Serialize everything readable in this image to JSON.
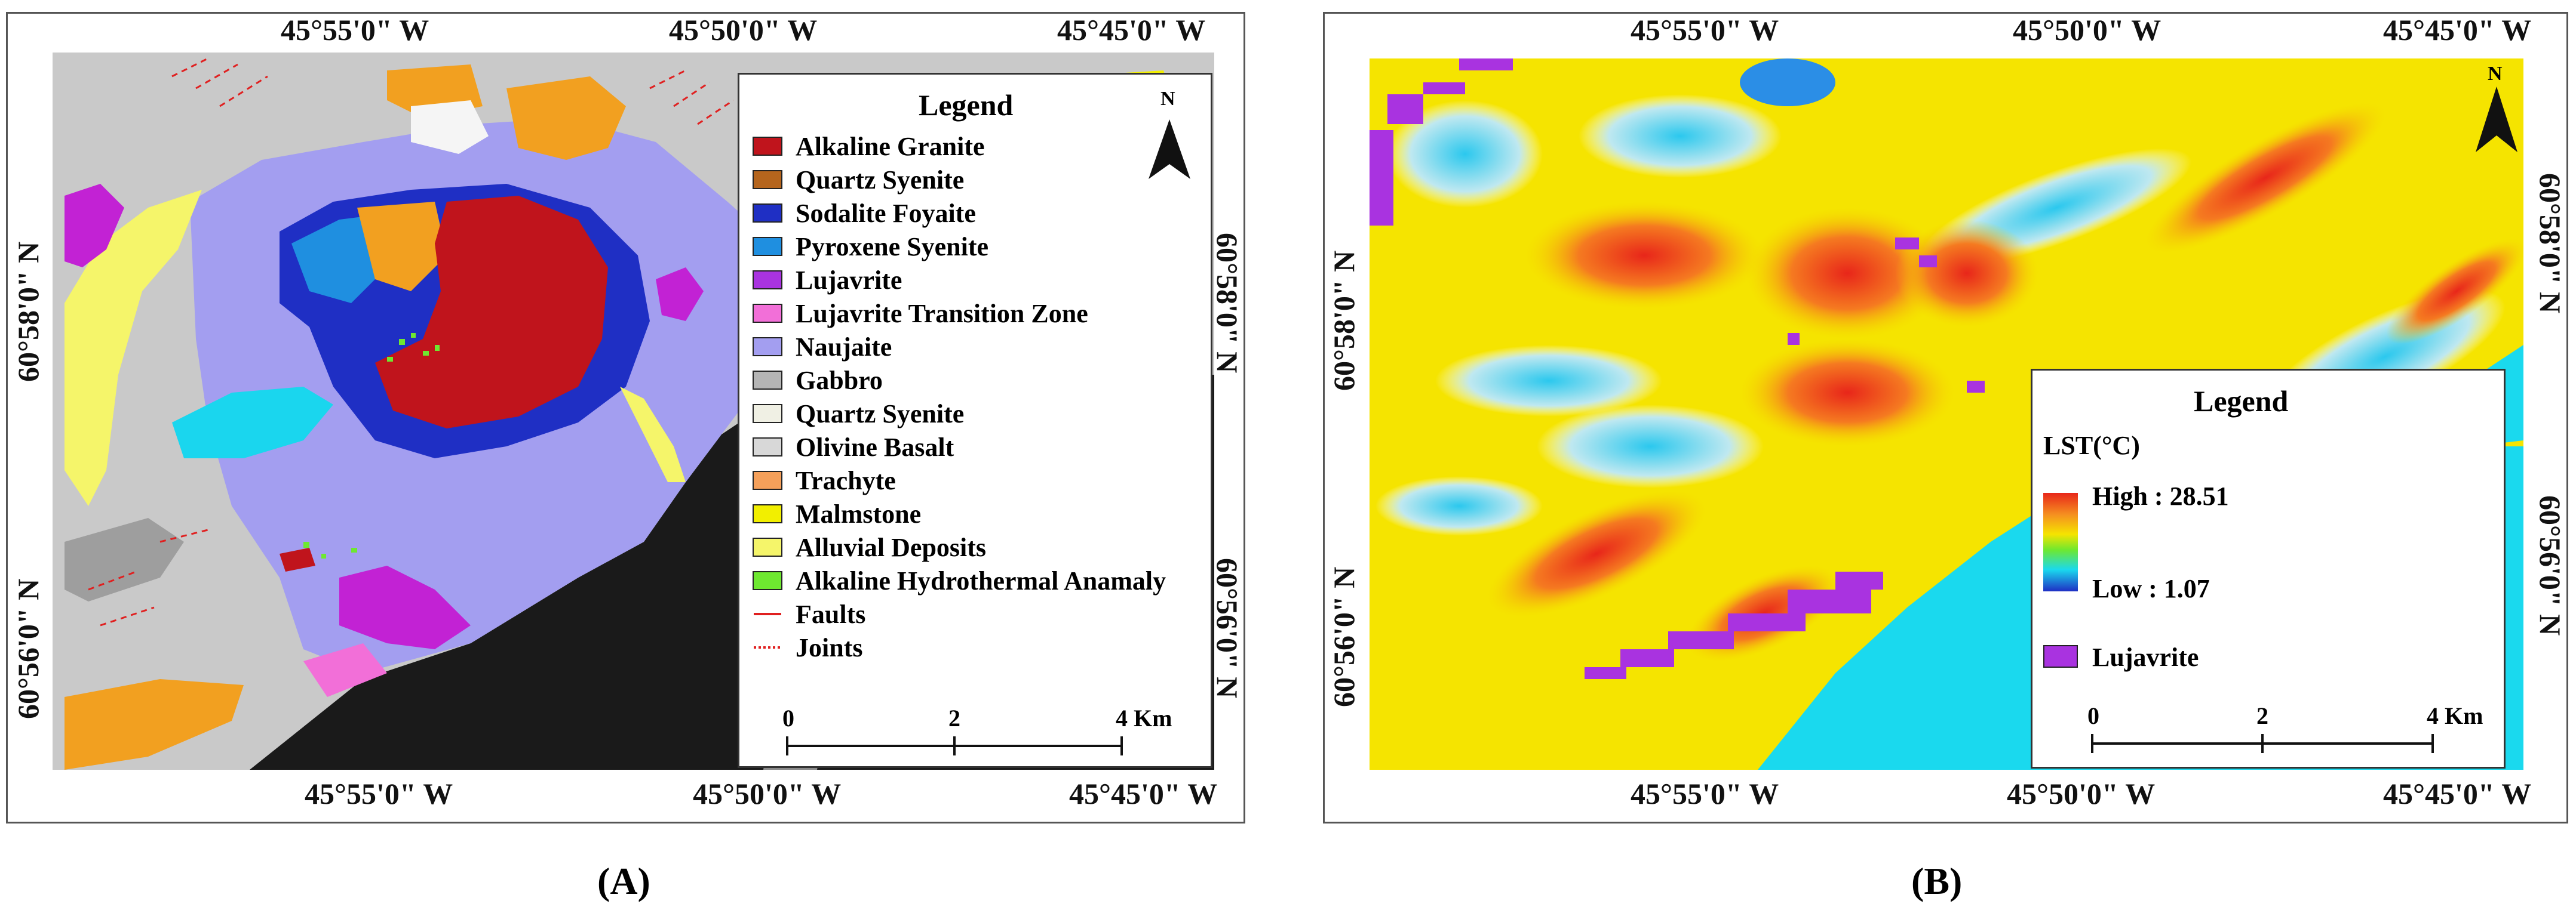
{
  "panel_a": {
    "label_open": "(",
    "label_letter": "A",
    "label_close": ")",
    "top_lon": [
      "45°55'0\" W",
      "45°50'0\" W",
      "45°45'0\" W"
    ],
    "bottom_lon": [
      "45°55'0\" W",
      "45°50'0\" W",
      "45°45'0\" W"
    ],
    "left_lat": [
      "60°58'0\" N",
      "60°56'0\" N"
    ],
    "right_lat": [
      "60°58'0\" N",
      "60°56'0\" N"
    ],
    "legend": {
      "title": "Legend",
      "items": [
        {
          "label": "Alkaline Granite",
          "color": "#c0141c",
          "kind": "fill"
        },
        {
          "label": "Quartz Syenite",
          "color": "#b5651d",
          "kind": "fill"
        },
        {
          "label": "Sodalite Foyaite",
          "color": "#1f2fc4",
          "kind": "fill"
        },
        {
          "label": "Pyroxene Syenite",
          "color": "#1f8fe0",
          "kind": "fill"
        },
        {
          "label": "Lujavrite",
          "color": "#a933e0",
          "kind": "fill"
        },
        {
          "label": "Lujavrite Transition Zone",
          "color": "#f26fd8",
          "kind": "fill"
        },
        {
          "label": "Naujaite",
          "color": "#a39ef0",
          "kind": "fill"
        },
        {
          "label": "Gabbro",
          "color": "#b5b5b5",
          "kind": "fill"
        },
        {
          "label": "Quartz Syenite",
          "color": "#f0f0e4",
          "kind": "fill"
        },
        {
          "label": "Olivine Basalt",
          "color": "#d8d8d8",
          "kind": "fill"
        },
        {
          "label": "Trachyte",
          "color": "#f5a05a",
          "kind": "fill"
        },
        {
          "label": "Malmstone",
          "color": "#f2ef00",
          "kind": "fill"
        },
        {
          "label": "Alluvial Deposits",
          "color": "#f5f56a",
          "kind": "fill"
        },
        {
          "label": "Alkaline Hydrothermal Anamaly",
          "color": "#6ee830",
          "kind": "fill"
        },
        {
          "label": "Faults",
          "color": "#e02020",
          "kind": "line"
        },
        {
          "label": "Joints",
          "color": "#e02020",
          "kind": "dotted"
        }
      ],
      "north": "N",
      "scale_ticks": [
        "0",
        "2",
        "4 Km"
      ]
    }
  },
  "panel_b": {
    "label_open": "(",
    "label_letter": "B",
    "label_close": ")",
    "top_lon": [
      "45°55'0\" W",
      "45°50'0\" W",
      "45°45'0\" W"
    ],
    "bottom_lon": [
      "45°55'0\" W",
      "45°50'0\" W",
      "45°45'0\" W"
    ],
    "left_lat": [
      "60°58'0\" N",
      "60°56'0\" N"
    ],
    "right_lat": [
      "60°58'0\" N",
      "60°56'0\" N"
    ],
    "legend": {
      "title": "Legend",
      "subtitle": "LST(°C)",
      "high": "High : 28.51",
      "low": "Low : 1.07",
      "lujavrite": "Lujavrite",
      "lujavrite_color": "#a933e0",
      "scale_ticks": [
        "0",
        "2",
        "4 Km"
      ]
    },
    "north": "N"
  }
}
